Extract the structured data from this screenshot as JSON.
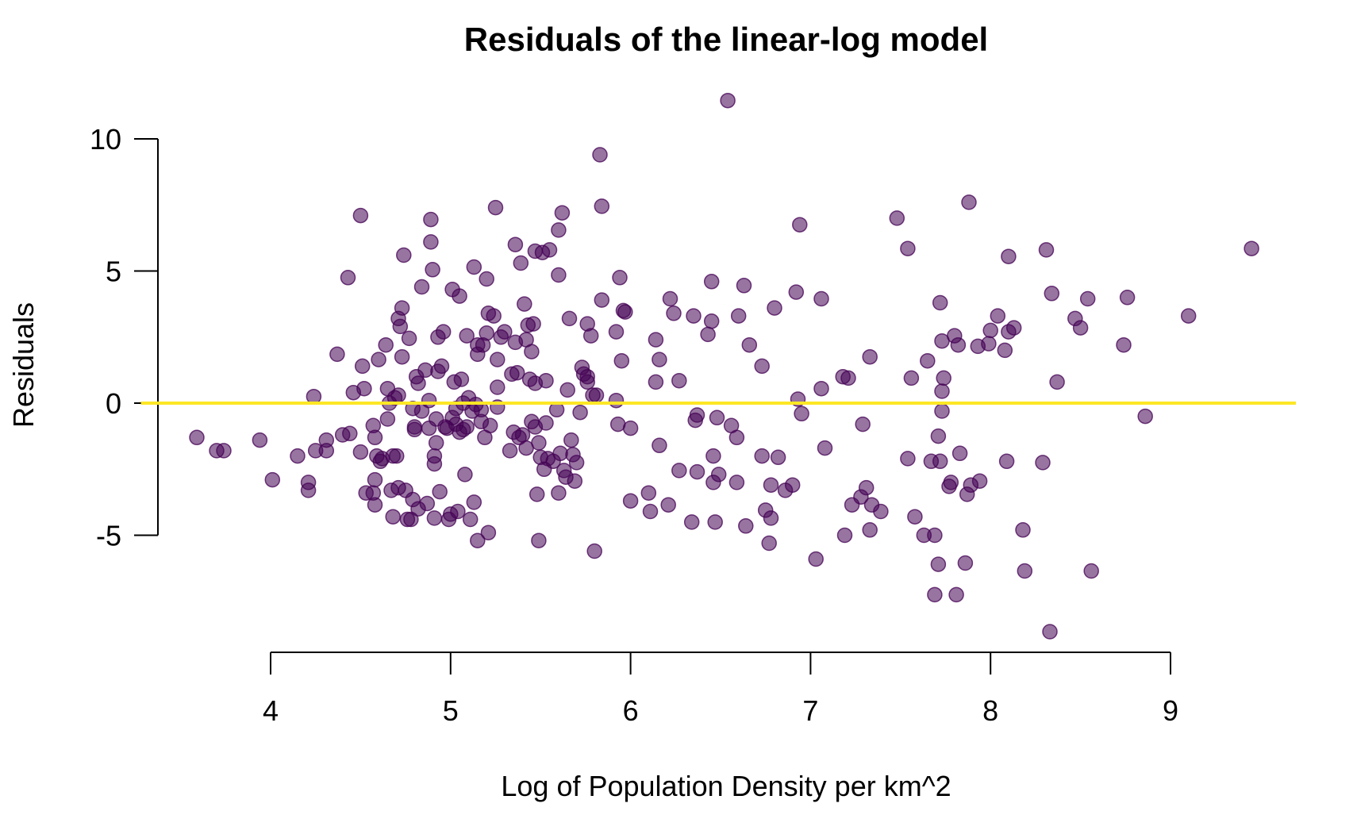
{
  "chart_data": {
    "type": "scatter",
    "title": "Residuals of the linear-log model",
    "xlabel": "Log of Population Density per km^2",
    "ylabel": "Residuals",
    "xlim": [
      3.5,
      9.7
    ],
    "ylim": [
      -9,
      11.5
    ],
    "x_ticks": [
      4,
      5,
      6,
      7,
      8,
      9
    ],
    "x_tick_labels": [
      "4",
      "5",
      "6",
      "7",
      "8",
      "9"
    ],
    "y_ticks": [
      -5,
      0,
      5,
      10
    ],
    "y_tick_labels": [
      "-5",
      "0",
      "5",
      "10"
    ],
    "grid": false,
    "reference_line": {
      "y": 0,
      "color": "#FDE725"
    },
    "point_color": "#440154",
    "point_opacity": 0.55,
    "points": [
      [
        3.59,
        -1.3
      ],
      [
        3.7,
        -1.8
      ],
      [
        3.74,
        -1.8
      ],
      [
        3.94,
        -1.4
      ],
      [
        4.01,
        -2.9
      ],
      [
        4.15,
        -2.0
      ],
      [
        4.21,
        -3.0
      ],
      [
        4.21,
        -3.3
      ],
      [
        4.24,
        0.25
      ],
      [
        4.25,
        -1.8
      ],
      [
        4.31,
        -1.8
      ],
      [
        4.31,
        -1.4
      ],
      [
        4.37,
        1.85
      ],
      [
        4.4,
        -1.2
      ],
      [
        4.43,
        4.75
      ],
      [
        4.44,
        -1.15
      ],
      [
        4.46,
        0.4
      ],
      [
        4.5,
        7.1
      ],
      [
        4.5,
        -1.85
      ],
      [
        4.51,
        1.4
      ],
      [
        4.52,
        0.55
      ],
      [
        4.53,
        -3.4
      ],
      [
        4.57,
        -3.4
      ],
      [
        4.57,
        -0.85
      ],
      [
        4.58,
        -1.3
      ],
      [
        4.58,
        -2.9
      ],
      [
        4.58,
        -3.85
      ],
      [
        4.59,
        -2.0
      ],
      [
        4.6,
        1.65
      ],
      [
        4.61,
        -2.2
      ],
      [
        4.62,
        -2.1
      ],
      [
        4.64,
        2.2
      ],
      [
        4.65,
        -0.6
      ],
      [
        4.65,
        0.55
      ],
      [
        4.66,
        0.0
      ],
      [
        4.67,
        -3.3
      ],
      [
        4.68,
        -4.3
      ],
      [
        4.68,
        -2.0
      ],
      [
        4.69,
        0.2
      ],
      [
        4.7,
        -2.0
      ],
      [
        4.71,
        0.3
      ],
      [
        4.71,
        3.2
      ],
      [
        4.71,
        -3.2
      ],
      [
        4.72,
        2.9
      ],
      [
        4.73,
        3.6
      ],
      [
        4.73,
        1.75
      ],
      [
        4.74,
        5.6
      ],
      [
        4.75,
        -3.3
      ],
      [
        4.76,
        -4.4
      ],
      [
        4.77,
        2.45
      ],
      [
        4.78,
        -4.4
      ],
      [
        4.79,
        -3.65
      ],
      [
        4.79,
        -0.2
      ],
      [
        4.8,
        -0.9
      ],
      [
        4.8,
        -1.0
      ],
      [
        4.81,
        1.0
      ],
      [
        4.82,
        -4.0
      ],
      [
        4.82,
        0.75
      ],
      [
        4.84,
        -0.3
      ],
      [
        4.84,
        4.4
      ],
      [
        4.86,
        1.25
      ],
      [
        4.87,
        -3.8
      ],
      [
        4.88,
        -0.95
      ],
      [
        4.88,
        0.1
      ],
      [
        4.89,
        6.95
      ],
      [
        4.89,
        6.1
      ],
      [
        4.9,
        5.05
      ],
      [
        4.91,
        -4.35
      ],
      [
        4.91,
        -2.3
      ],
      [
        4.91,
        -2.0
      ],
      [
        4.92,
        -1.5
      ],
      [
        4.92,
        -0.6
      ],
      [
        4.93,
        1.2
      ],
      [
        4.93,
        2.5
      ],
      [
        4.94,
        -3.35
      ],
      [
        4.95,
        1.4
      ],
      [
        4.96,
        2.7
      ],
      [
        4.97,
        -0.9
      ],
      [
        4.98,
        -0.95
      ],
      [
        4.99,
        -4.4
      ],
      [
        5.0,
        -4.2
      ],
      [
        5.01,
        4.3
      ],
      [
        5.01,
        -0.55
      ],
      [
        5.02,
        0.8
      ],
      [
        5.03,
        -0.2
      ],
      [
        5.03,
        -0.8
      ],
      [
        5.04,
        -4.1
      ],
      [
        5.05,
        4.05
      ],
      [
        5.05,
        -1.1
      ],
      [
        5.06,
        0.9
      ],
      [
        5.07,
        -1.0
      ],
      [
        5.07,
        0.0
      ],
      [
        5.08,
        -2.7
      ],
      [
        5.09,
        2.55
      ],
      [
        5.09,
        -0.9
      ],
      [
        5.1,
        0.2
      ],
      [
        5.11,
        -4.4
      ],
      [
        5.12,
        -0.3
      ],
      [
        5.13,
        5.15
      ],
      [
        5.13,
        -3.75
      ],
      [
        5.14,
        -0.05
      ],
      [
        5.15,
        -5.2
      ],
      [
        5.15,
        1.85
      ],
      [
        5.15,
        2.2
      ],
      [
        5.17,
        -0.7
      ],
      [
        5.17,
        -0.25
      ],
      [
        5.18,
        2.2
      ],
      [
        5.19,
        -1.3
      ],
      [
        5.2,
        4.7
      ],
      [
        5.2,
        2.65
      ],
      [
        5.21,
        3.4
      ],
      [
        5.21,
        -4.9
      ],
      [
        5.22,
        -0.85
      ],
      [
        5.24,
        3.3
      ],
      [
        5.25,
        7.4
      ],
      [
        5.26,
        1.65
      ],
      [
        5.26,
        0.6
      ],
      [
        5.26,
        -0.15
      ],
      [
        5.28,
        2.5
      ],
      [
        5.3,
        2.7
      ],
      [
        5.33,
        -1.8
      ],
      [
        5.34,
        1.1
      ],
      [
        5.35,
        -1.1
      ],
      [
        5.36,
        6.0
      ],
      [
        5.36,
        2.3
      ],
      [
        5.37,
        1.15
      ],
      [
        5.38,
        -1.3
      ],
      [
        5.39,
        5.3
      ],
      [
        5.4,
        -1.2
      ],
      [
        5.41,
        3.75
      ],
      [
        5.42,
        2.4
      ],
      [
        5.42,
        -1.7
      ],
      [
        5.43,
        2.95
      ],
      [
        5.44,
        0.9
      ],
      [
        5.45,
        1.95
      ],
      [
        5.45,
        -0.7
      ],
      [
        5.46,
        3.0
      ],
      [
        5.47,
        0.75
      ],
      [
        5.47,
        -0.9
      ],
      [
        5.47,
        5.75
      ],
      [
        5.48,
        -3.45
      ],
      [
        5.49,
        -5.2
      ],
      [
        5.49,
        -1.5
      ],
      [
        5.5,
        -2.05
      ],
      [
        5.51,
        5.7
      ],
      [
        5.52,
        -2.5
      ],
      [
        5.53,
        0.85
      ],
      [
        5.53,
        -0.75
      ],
      [
        5.54,
        -2.1
      ],
      [
        5.55,
        5.8
      ],
      [
        5.57,
        -2.2
      ],
      [
        5.59,
        -0.25
      ],
      [
        5.6,
        4.85
      ],
      [
        5.6,
        6.55
      ],
      [
        5.6,
        -3.4
      ],
      [
        5.61,
        -1.9
      ],
      [
        5.62,
        7.2
      ],
      [
        5.63,
        -2.55
      ],
      [
        5.64,
        -2.8
      ],
      [
        5.65,
        0.5
      ],
      [
        5.66,
        3.2
      ],
      [
        5.67,
        -1.4
      ],
      [
        5.68,
        -1.95
      ],
      [
        5.69,
        -2.95
      ],
      [
        5.7,
        -2.25
      ],
      [
        5.72,
        -0.35
      ],
      [
        5.73,
        1.35
      ],
      [
        5.74,
        1.1
      ],
      [
        5.76,
        1.0
      ],
      [
        5.76,
        3.0
      ],
      [
        5.76,
        0.8
      ],
      [
        5.78,
        2.55
      ],
      [
        5.79,
        0.3
      ],
      [
        5.8,
        -5.6
      ],
      [
        5.81,
        0.3
      ],
      [
        5.83,
        9.4
      ],
      [
        5.84,
        7.45
      ],
      [
        5.84,
        3.9
      ],
      [
        5.92,
        0.1
      ],
      [
        5.92,
        2.7
      ],
      [
        5.93,
        -0.8
      ],
      [
        5.94,
        4.75
      ],
      [
        5.95,
        1.6
      ],
      [
        5.96,
        3.5
      ],
      [
        5.97,
        3.45
      ],
      [
        6.0,
        -0.95
      ],
      [
        6.0,
        -3.7
      ],
      [
        6.1,
        -3.4
      ],
      [
        6.11,
        -4.1
      ],
      [
        6.14,
        2.4
      ],
      [
        6.14,
        0.8
      ],
      [
        6.16,
        1.65
      ],
      [
        6.16,
        -1.6
      ],
      [
        6.21,
        -3.85
      ],
      [
        6.22,
        3.95
      ],
      [
        6.24,
        3.4
      ],
      [
        6.27,
        0.85
      ],
      [
        6.27,
        -2.55
      ],
      [
        6.34,
        -4.5
      ],
      [
        6.35,
        3.3
      ],
      [
        6.36,
        -0.65
      ],
      [
        6.37,
        -0.45
      ],
      [
        6.37,
        -2.6
      ],
      [
        6.43,
        2.6
      ],
      [
        6.45,
        4.6
      ],
      [
        6.45,
        3.1
      ],
      [
        6.46,
        -2.0
      ],
      [
        6.46,
        -3.0
      ],
      [
        6.47,
        -4.5
      ],
      [
        6.48,
        -0.55
      ],
      [
        6.49,
        -2.7
      ],
      [
        6.54,
        11.45
      ],
      [
        6.56,
        -0.85
      ],
      [
        6.59,
        -3.0
      ],
      [
        6.59,
        -1.3
      ],
      [
        6.6,
        3.3
      ],
      [
        6.63,
        4.45
      ],
      [
        6.64,
        -4.65
      ],
      [
        6.66,
        2.2
      ],
      [
        6.73,
        1.4
      ],
      [
        6.73,
        -2.0
      ],
      [
        6.75,
        -4.05
      ],
      [
        6.77,
        -5.3
      ],
      [
        6.78,
        -3.1
      ],
      [
        6.78,
        -4.35
      ],
      [
        6.8,
        3.6
      ],
      [
        6.82,
        -2.05
      ],
      [
        6.86,
        -3.3
      ],
      [
        6.9,
        -3.1
      ],
      [
        6.92,
        4.2
      ],
      [
        6.93,
        0.15
      ],
      [
        6.94,
        6.75
      ],
      [
        6.95,
        -0.4
      ],
      [
        7.03,
        -5.9
      ],
      [
        7.06,
        0.55
      ],
      [
        7.06,
        3.95
      ],
      [
        7.08,
        -1.7
      ],
      [
        7.18,
        1.0
      ],
      [
        7.19,
        -5.0
      ],
      [
        7.21,
        0.95
      ],
      [
        7.23,
        -3.85
      ],
      [
        7.28,
        -3.55
      ],
      [
        7.29,
        -0.8
      ],
      [
        7.31,
        -3.2
      ],
      [
        7.33,
        -4.8
      ],
      [
        7.33,
        1.75
      ],
      [
        7.34,
        -3.85
      ],
      [
        7.39,
        -4.1
      ],
      [
        7.48,
        7.0
      ],
      [
        7.54,
        5.85
      ],
      [
        7.54,
        -2.1
      ],
      [
        7.56,
        0.95
      ],
      [
        7.58,
        -4.3
      ],
      [
        7.63,
        -5.0
      ],
      [
        7.65,
        1.6
      ],
      [
        7.67,
        -2.2
      ],
      [
        7.69,
        -5.0
      ],
      [
        7.69,
        -7.25
      ],
      [
        7.71,
        -6.1
      ],
      [
        7.71,
        -1.25
      ],
      [
        7.72,
        -2.2
      ],
      [
        7.72,
        3.8
      ],
      [
        7.73,
        2.35
      ],
      [
        7.73,
        -0.3
      ],
      [
        7.73,
        0.45
      ],
      [
        7.74,
        0.95
      ],
      [
        7.77,
        -3.15
      ],
      [
        7.78,
        -3.0
      ],
      [
        7.8,
        2.55
      ],
      [
        7.81,
        -7.25
      ],
      [
        7.82,
        2.2
      ],
      [
        7.83,
        -1.9
      ],
      [
        7.86,
        -6.05
      ],
      [
        7.87,
        -3.45
      ],
      [
        7.88,
        7.6
      ],
      [
        7.89,
        -3.1
      ],
      [
        7.93,
        2.15
      ],
      [
        7.94,
        -2.95
      ],
      [
        7.99,
        2.25
      ],
      [
        8.0,
        2.75
      ],
      [
        8.04,
        3.3
      ],
      [
        8.08,
        2.0
      ],
      [
        8.09,
        -2.2
      ],
      [
        8.1,
        5.55
      ],
      [
        8.1,
        2.7
      ],
      [
        8.13,
        2.85
      ],
      [
        8.18,
        -4.8
      ],
      [
        8.19,
        -6.35
      ],
      [
        8.29,
        -2.25
      ],
      [
        8.31,
        5.8
      ],
      [
        8.33,
        -8.65
      ],
      [
        8.34,
        4.15
      ],
      [
        8.37,
        0.8
      ],
      [
        8.47,
        3.2
      ],
      [
        8.5,
        2.85
      ],
      [
        8.54,
        3.95
      ],
      [
        8.56,
        -6.35
      ],
      [
        8.74,
        2.2
      ],
      [
        8.76,
        4.0
      ],
      [
        8.86,
        -0.5
      ],
      [
        9.1,
        3.3
      ],
      [
        9.45,
        5.85
      ]
    ]
  }
}
